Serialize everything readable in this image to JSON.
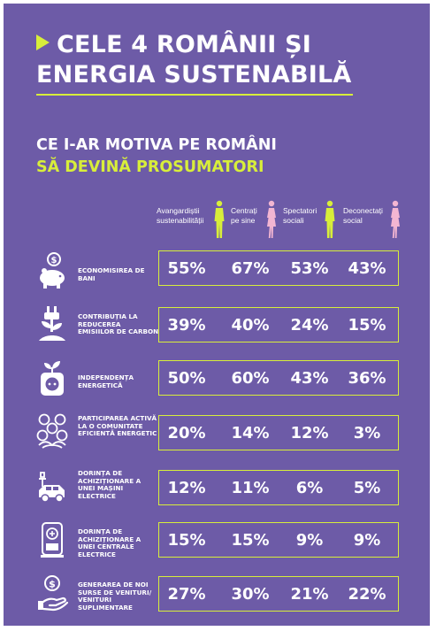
{
  "title": {
    "line1": "CELE 4 ROMÂNII ȘI",
    "line2": "ENERGIA SUSTENABILĂ"
  },
  "subtitle": {
    "line1": "CE I-AR MOTIVA PE ROMÂNI",
    "line2": "SĂ DEVINĂ PROSUMATORI"
  },
  "columns": [
    {
      "line1": "Avangardiștii",
      "line2": "sustenabilității"
    },
    {
      "line1": "Centrați",
      "line2": "pe sine"
    },
    {
      "line1": "Spectatori",
      "line2": "sociali"
    },
    {
      "line1": "Deconectați",
      "line2": "social"
    }
  ],
  "rows": [
    {
      "icon": "piggy-bank-icon",
      "label": "ECONOMISIREA DE BANI",
      "values": [
        "55%",
        "67%",
        "53%",
        "43%"
      ]
    },
    {
      "icon": "plug-plant-icon",
      "label": "CONTRIBUȚIA LA REDUCEREA EMISIILOR DE CARBON",
      "values": [
        "39%",
        "40%",
        "24%",
        "15%"
      ]
    },
    {
      "icon": "socket-leaf-icon",
      "label": "INDEPENDENȚA ENERGETICĂ",
      "values": [
        "50%",
        "60%",
        "43%",
        "36%"
      ]
    },
    {
      "icon": "community-icon",
      "label": "PARTICIPAREA ACTIVĂ LA O COMUNITATE EFICIENTĂ ENERGETIC",
      "values": [
        "20%",
        "14%",
        "12%",
        "3%"
      ]
    },
    {
      "icon": "electric-car-icon",
      "label": "DORINȚA DE ACHIZIȚIONARE A UNEI MAȘINI ELECTRICE",
      "values": [
        "12%",
        "11%",
        "6%",
        "5%"
      ]
    },
    {
      "icon": "power-station-icon",
      "label": "DORINȚA DE ACHIZIȚIONARE A UNEI CENTRALE ELECTRICE",
      "values": [
        "15%",
        "15%",
        "9%",
        "9%"
      ]
    },
    {
      "icon": "hand-coin-icon",
      "label": "GENERAREA DE NOI SURSE DE VENITURI/ VENITURI SUPLIMENTARE",
      "values": [
        "27%",
        "30%",
        "21%",
        "22%"
      ]
    }
  ],
  "colors": {
    "background": "#6d5ba7",
    "accent": "#d8ee3a",
    "pink": "#f3b6d2",
    "text": "#ffffff"
  }
}
